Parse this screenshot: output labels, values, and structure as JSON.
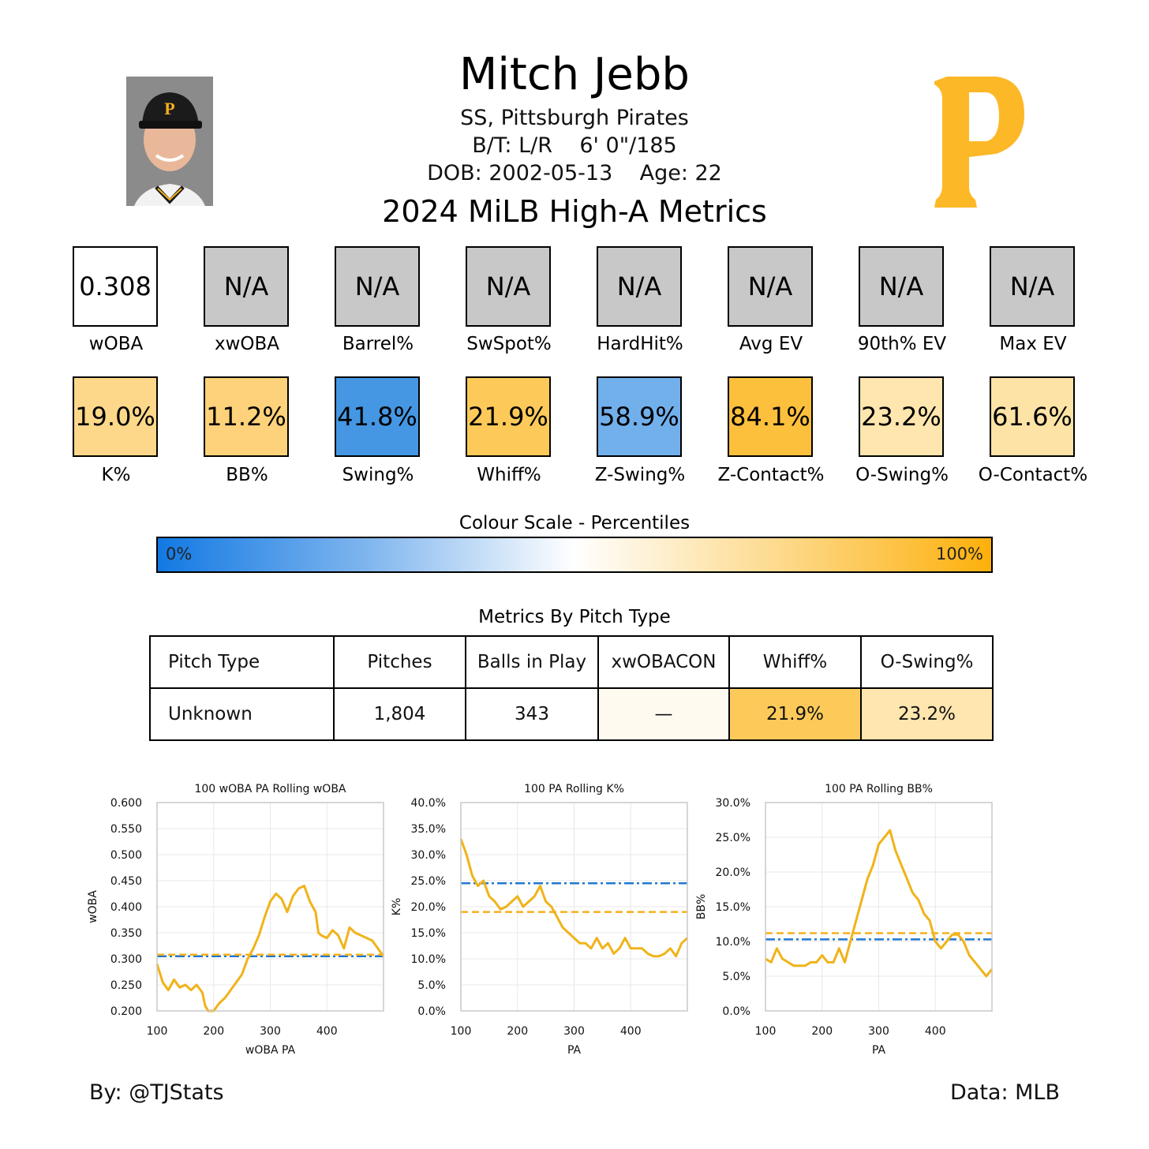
{
  "player": {
    "name": "Mitch Jebb",
    "position_team": "SS, Pittsburgh Pirates",
    "bats_throws": "B/T: L/R",
    "height_weight": "6' 0\"/185",
    "dob": "DOB: 2002-05-13",
    "age": "Age: 22"
  },
  "season_title": "2024 MiLB High-A Metrics",
  "colors": {
    "low": "#1279e3",
    "mid": "#ffffff",
    "high": "#fdb00b",
    "na": "#c8c8c8",
    "league_line": "#1f78d1",
    "player_line": "#f5b01d",
    "series_line": "#f0b319",
    "team_logo": "#fdb827"
  },
  "metrics_row1": [
    {
      "label": "wOBA",
      "value": "0.308",
      "bg": "#ffffff"
    },
    {
      "label": "xwOBA",
      "value": "N/A",
      "bg": "#c8c8c8"
    },
    {
      "label": "Barrel%",
      "value": "N/A",
      "bg": "#c8c8c8"
    },
    {
      "label": "SwSpot%",
      "value": "N/A",
      "bg": "#c8c8c8"
    },
    {
      "label": "HardHit%",
      "value": "N/A",
      "bg": "#c8c8c8"
    },
    {
      "label": "Avg EV",
      "value": "N/A",
      "bg": "#c8c8c8"
    },
    {
      "label": "90th% EV",
      "value": "N/A",
      "bg": "#c8c8c8"
    },
    {
      "label": "Max EV",
      "value": "N/A",
      "bg": "#c8c8c8"
    }
  ],
  "metrics_row2": [
    {
      "label": "K%",
      "value": "19.0%",
      "bg": "#fed88a"
    },
    {
      "label": "BB%",
      "value": "11.2%",
      "bg": "#fdd27a"
    },
    {
      "label": "Swing%",
      "value": "41.8%",
      "bg": "#4597e3"
    },
    {
      "label": "Whiff%",
      "value": "21.9%",
      "bg": "#fdca5a"
    },
    {
      "label": "Z-Swing%",
      "value": "58.9%",
      "bg": "#72b0eb"
    },
    {
      "label": "Z-Contact%",
      "value": "84.1%",
      "bg": "#fdc03c"
    },
    {
      "label": "O-Swing%",
      "value": "23.2%",
      "bg": "#fee6ae"
    },
    {
      "label": "O-Contact%",
      "value": "61.6%",
      "bg": "#fee3a6"
    }
  ],
  "color_scale": {
    "title": "Colour Scale - Percentiles",
    "min_label": "0%",
    "max_label": "100%"
  },
  "pitch_table": {
    "title": "Metrics By Pitch Type",
    "headers": [
      "Pitch Type",
      "Pitches",
      "Balls in Play",
      "xwOBACON",
      "Whiff%",
      "O-Swing%"
    ],
    "rows": [
      {
        "cells": [
          "Unknown",
          "1,804",
          "343",
          "—",
          "21.9%",
          "23.2%"
        ],
        "bgs": [
          "#ffffff",
          "#ffffff",
          "#ffffff",
          "#fffaf0",
          "#fdca5a",
          "#fee6ae"
        ]
      }
    ]
  },
  "chart_data": [
    {
      "type": "line",
      "title": "100 wOBA PA Rolling wOBA",
      "xlabel": "wOBA PA",
      "ylabel": "wOBA",
      "xlim": [
        100,
        500
      ],
      "ylim": [
        0.2,
        0.6
      ],
      "xticks": [
        100,
        200,
        300,
        400
      ],
      "xtick_labels": [
        "100",
        "200",
        "300",
        "400"
      ],
      "yticks": [
        0.2,
        0.25,
        0.3,
        0.35,
        0.4,
        0.45,
        0.5,
        0.55,
        0.6
      ],
      "ytick_labels": [
        "0.200",
        "0.250",
        "0.300",
        "0.350",
        "0.400",
        "0.450",
        "0.500",
        "0.550",
        "0.600"
      ],
      "grid": true,
      "league_avg": 0.305,
      "player_avg": 0.308,
      "series": [
        {
          "x": [
            100,
            110,
            120,
            130,
            140,
            150,
            160,
            170,
            180,
            185,
            190,
            200,
            210,
            220,
            230,
            240,
            250,
            260,
            270,
            280,
            290,
            300,
            310,
            320,
            330,
            340,
            350,
            360,
            370,
            380,
            385,
            390,
            400,
            410,
            420,
            430,
            440,
            450,
            460,
            470,
            480,
            490,
            500
          ],
          "y": [
            0.29,
            0.255,
            0.24,
            0.26,
            0.245,
            0.25,
            0.24,
            0.25,
            0.235,
            0.21,
            0.2,
            0.2,
            0.215,
            0.225,
            0.24,
            0.255,
            0.27,
            0.3,
            0.32,
            0.345,
            0.38,
            0.41,
            0.425,
            0.415,
            0.39,
            0.42,
            0.435,
            0.44,
            0.41,
            0.39,
            0.35,
            0.345,
            0.34,
            0.355,
            0.345,
            0.32,
            0.36,
            0.35,
            0.345,
            0.34,
            0.335,
            0.32,
            0.305
          ]
        }
      ]
    },
    {
      "type": "line",
      "title": "100 PA Rolling K%",
      "xlabel": "PA",
      "ylabel": "K%",
      "xlim": [
        100,
        500
      ],
      "ylim": [
        0,
        40
      ],
      "xticks": [
        100,
        200,
        300,
        400
      ],
      "xtick_labels": [
        "100",
        "200",
        "300",
        "400"
      ],
      "yticks": [
        0,
        5,
        10,
        15,
        20,
        25,
        30,
        35,
        40
      ],
      "ytick_labels": [
        "0.0%",
        "5.0%",
        "10.0%",
        "15.0%",
        "20.0%",
        "25.0%",
        "30.0%",
        "35.0%",
        "40.0%"
      ],
      "grid": true,
      "league_avg": 24.5,
      "player_avg": 19.0,
      "series": [
        {
          "x": [
            100,
            110,
            120,
            130,
            140,
            150,
            160,
            170,
            180,
            190,
            200,
            210,
            220,
            230,
            240,
            250,
            260,
            270,
            280,
            290,
            300,
            310,
            320,
            330,
            340,
            350,
            360,
            370,
            380,
            390,
            400,
            410,
            420,
            430,
            440,
            450,
            460,
            470,
            480,
            490,
            500
          ],
          "y": [
            33,
            30,
            26,
            24,
            25,
            22,
            21,
            19.5,
            20,
            21,
            22,
            20,
            21,
            22,
            24,
            21,
            20,
            18,
            16,
            15,
            14,
            13,
            13,
            12,
            14,
            12,
            13,
            11,
            12,
            14,
            12,
            12,
            12,
            11,
            10.5,
            10.5,
            11,
            12,
            10.5,
            13,
            14
          ]
        }
      ]
    },
    {
      "type": "line",
      "title": "100 PA Rolling BB%",
      "xlabel": "PA",
      "ylabel": "BB%",
      "xlim": [
        100,
        500
      ],
      "ylim": [
        0,
        30
      ],
      "xticks": [
        100,
        200,
        300,
        400
      ],
      "xtick_labels": [
        "100",
        "200",
        "300",
        "400"
      ],
      "yticks": [
        0,
        5,
        10,
        15,
        20,
        25,
        30
      ],
      "ytick_labels": [
        "0.0%",
        "5.0%",
        "10.0%",
        "15.0%",
        "20.0%",
        "25.0%",
        "30.0%"
      ],
      "grid": true,
      "league_avg": 10.3,
      "player_avg": 11.2,
      "series": [
        {
          "x": [
            100,
            110,
            120,
            130,
            140,
            150,
            160,
            170,
            180,
            190,
            200,
            210,
            220,
            230,
            240,
            250,
            260,
            270,
            280,
            290,
            300,
            310,
            320,
            330,
            340,
            350,
            360,
            370,
            380,
            390,
            400,
            410,
            420,
            430,
            440,
            450,
            460,
            470,
            480,
            490,
            500
          ],
          "y": [
            7.5,
            7,
            9,
            7.5,
            7,
            6.5,
            6.5,
            6.5,
            7,
            7,
            8,
            7,
            7,
            9,
            7,
            10,
            13,
            16,
            19,
            21,
            24,
            25,
            26,
            23,
            21,
            19,
            17,
            16,
            14,
            13,
            10,
            9,
            10,
            11,
            11,
            10,
            8,
            7,
            6,
            5,
            6
          ]
        }
      ]
    }
  ],
  "footer": {
    "credit": "By: @TJStats",
    "source": "Data: MLB"
  }
}
